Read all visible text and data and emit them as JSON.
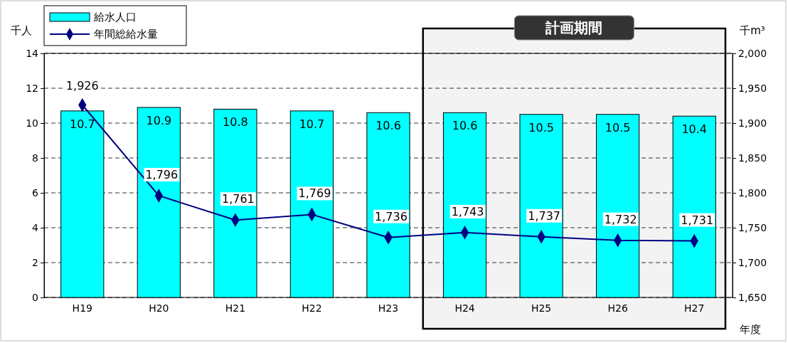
{
  "chart_data": {
    "type": "bar",
    "categories": [
      "H19",
      "H20",
      "H21",
      "H22",
      "H23",
      "H24",
      "H25",
      "H26",
      "H27"
    ],
    "series": [
      {
        "name": "給水人口",
        "color": "#00ffff",
        "values": [
          10.7,
          10.9,
          10.8,
          10.7,
          10.6,
          10.6,
          10.5,
          10.5,
          10.4
        ],
        "value_labels": [
          "10.7",
          "10.9",
          "10.8",
          "10.7",
          "10.6",
          "10.6",
          "10.5",
          "10.5",
          "10.4"
        ]
      },
      {
        "name": "年間総給水量",
        "type": "line",
        "axis": "y2",
        "color": "#000080",
        "marker": "diamond",
        "values": [
          1926,
          1796,
          1761,
          1769,
          1736,
          1743,
          1737,
          1732,
          1731
        ],
        "value_labels": [
          "1,926",
          "1,796",
          "1,761",
          "1,769",
          "1,736",
          "1,743",
          "1,737",
          "1,732",
          "1,731"
        ]
      }
    ],
    "ylabel": "千人",
    "y2label": "千m³",
    "xlabel": "年度",
    "ylim": [
      0,
      14
    ],
    "yticks": [
      0,
      2,
      4,
      6,
      8,
      10,
      12,
      14
    ],
    "y2lim": [
      1650,
      2000
    ],
    "y2ticks": [
      {
        "value": 1650,
        "label": "1,650"
      },
      {
        "value": 1700,
        "label": "1,700"
      },
      {
        "value": 1750,
        "label": "1,750"
      },
      {
        "value": 1800,
        "label": "1,800"
      },
      {
        "value": 1850,
        "label": "1,850"
      },
      {
        "value": 1900,
        "label": "1,900"
      },
      {
        "value": 1950,
        "label": "1,950"
      },
      {
        "value": 2000,
        "label": "2,000"
      }
    ],
    "bands": [
      {
        "axis": "x",
        "from": "H24",
        "to": "H27",
        "label": "計画期間"
      }
    ],
    "grid": "y",
    "legend": "top left"
  }
}
